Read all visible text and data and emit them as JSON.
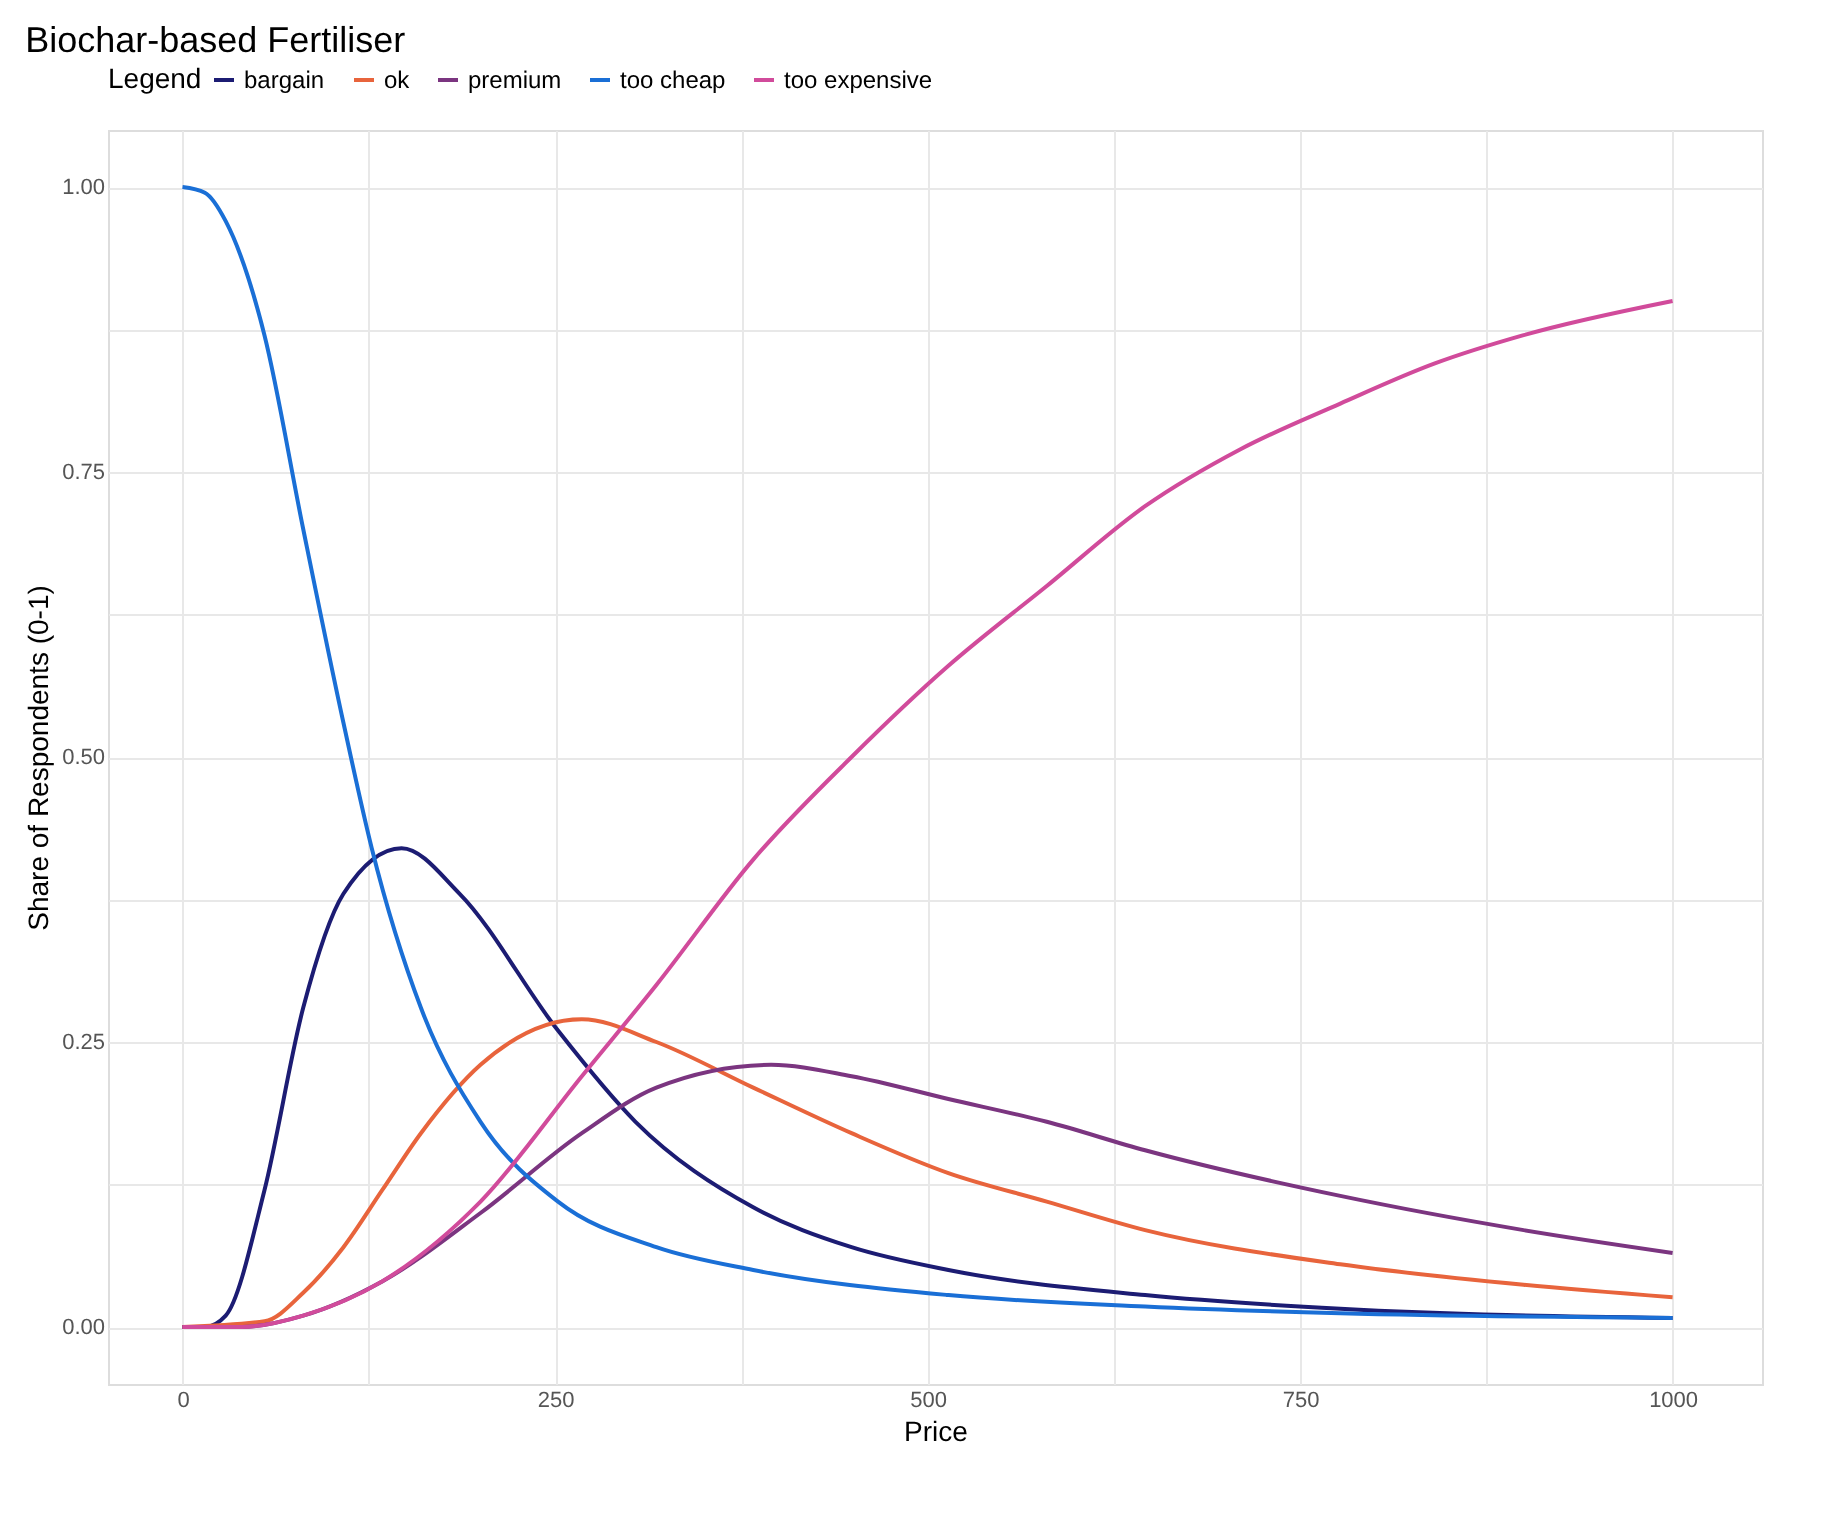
{
  "chart_data": {
    "type": "line",
    "title": "Biochar-based Fertiliser",
    "xlabel": "Price",
    "ylabel": "Share of Respondents (0-1)",
    "legend_title": "Legend",
    "legend": "top",
    "grid": true,
    "line_style": "solid",
    "marker": "none",
    "xlim": [
      -50,
      1060
    ],
    "ylim": [
      -0.05,
      1.05
    ],
    "xticks": [
      0,
      {
        "value": 125,
        "label": null
      },
      250,
      {
        "value": 375,
        "label": null
      },
      500,
      {
        "value": 625,
        "label": null
      },
      750,
      {
        "value": 875,
        "label": null
      },
      1000
    ],
    "yticks": [
      {
        "value": 0,
        "label": "0.00"
      },
      {
        "value": 0.125,
        "label": null
      },
      {
        "value": 0.25,
        "label": "0.25"
      },
      {
        "value": 0.375,
        "label": null
      },
      {
        "value": 0.5,
        "label": "0.50"
      },
      {
        "value": 0.625,
        "label": null
      },
      {
        "value": 0.75,
        "label": "0.75"
      },
      {
        "value": 0.875,
        "label": null
      },
      {
        "value": 1,
        "label": "1.00"
      }
    ],
    "series": [
      {
        "name": "bargain",
        "color": "#1c1c73",
        "x": [
          0,
          15,
          29,
          55,
          81,
          108,
          147,
          186,
          252,
          304,
          383,
          449,
          514,
          646,
          777,
          1000
        ],
        "values": [
          0,
          0,
          0.01,
          0.12,
          0.28,
          0.38,
          0.42,
          0.38,
          0.26,
          0.18,
          0.105,
          0.07,
          0.05,
          0.028,
          0.016,
          0.008
        ]
      },
      {
        "name": "ok",
        "color": "#e8643c",
        "x": [
          0,
          55,
          81,
          108,
          134,
          160,
          200,
          268,
          318,
          383,
          449,
          514,
          580,
          646,
          777,
          900,
          1000
        ],
        "values": [
          0,
          0.005,
          0.03,
          0.07,
          0.12,
          0.17,
          0.23,
          0.27,
          0.25,
          0.21,
          0.17,
          0.135,
          0.11,
          0.085,
          0.055,
          0.037,
          0.026
        ]
      },
      {
        "name": "premium",
        "color": "#7b3580",
        "x": [
          0,
          40,
          81,
          134,
          200,
          268,
          318,
          395,
          449,
          514,
          580,
          646,
          777,
          900,
          1000
        ],
        "values": [
          0,
          0,
          0.01,
          0.04,
          0.1,
          0.17,
          0.21,
          0.23,
          0.22,
          0.2,
          0.18,
          0.155,
          0.115,
          0.085,
          0.065
        ]
      },
      {
        "name": "too cheap",
        "color": "#1a6fd6",
        "x": [
          0,
          15,
          29,
          55,
          81,
          108,
          127,
          160,
          200,
          252,
          318,
          383,
          514,
          646,
          777,
          1000
        ],
        "values": [
          1,
          0.995,
          0.97,
          0.87,
          0.7,
          0.53,
          0.42,
          0.28,
          0.18,
          0.11,
          0.07,
          0.05,
          0.028,
          0.018,
          0.012,
          0.008
        ]
      },
      {
        "name": "too expensive",
        "color": "#d14b9b",
        "x": [
          0,
          40,
          81,
          134,
          200,
          268,
          318,
          383,
          449,
          514,
          580,
          646,
          710,
          777,
          840,
          900,
          1000
        ],
        "values": [
          0,
          0,
          0.01,
          0.04,
          0.11,
          0.22,
          0.3,
          0.41,
          0.5,
          0.58,
          0.65,
          0.72,
          0.77,
          0.81,
          0.845,
          0.87,
          0.9
        ]
      }
    ]
  }
}
